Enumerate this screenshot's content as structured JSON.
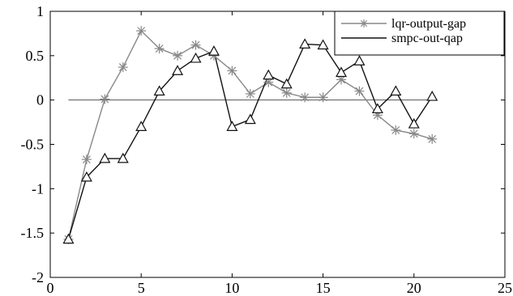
{
  "chart_data": {
    "type": "line",
    "title": "",
    "xlabel": "",
    "ylabel": "",
    "xlim": [
      0,
      25
    ],
    "ylim": [
      -2,
      1
    ],
    "xticks": [
      "0",
      "5",
      "10",
      "15",
      "20",
      "25"
    ],
    "yticks": [
      "-2",
      "-1.5",
      "-1",
      "-0.5",
      "0",
      "0.5",
      "1"
    ],
    "grid": false,
    "legend_position": "top-right",
    "x": [
      1,
      2,
      3,
      4,
      5,
      6,
      7,
      8,
      9,
      10,
      11,
      12,
      13,
      14,
      15,
      16,
      17,
      18,
      19,
      20,
      21
    ],
    "series": [
      {
        "name": "lqr-output-gap",
        "color": "#888888",
        "marker": "star",
        "values": [
          -1.57,
          -0.67,
          0.01,
          0.37,
          0.78,
          0.58,
          0.5,
          0.62,
          0.5,
          0.33,
          0.07,
          0.2,
          0.08,
          0.03,
          0.03,
          0.23,
          0.1,
          -0.17,
          -0.34,
          -0.38,
          -0.44
        ]
      },
      {
        "name": "smpc-out-qap",
        "color": "#111111",
        "marker": "triangle",
        "values": [
          -1.57,
          -0.87,
          -0.66,
          -0.66,
          -0.3,
          0.1,
          0.33,
          0.47,
          0.55,
          -0.3,
          -0.22,
          0.28,
          0.18,
          0.63,
          0.62,
          0.31,
          0.44,
          -0.1,
          0.1,
          -0.27,
          0.04
        ]
      }
    ],
    "reference_line": {
      "y": 0,
      "x_from": 1,
      "x_to": 21,
      "color": "#555555"
    }
  }
}
